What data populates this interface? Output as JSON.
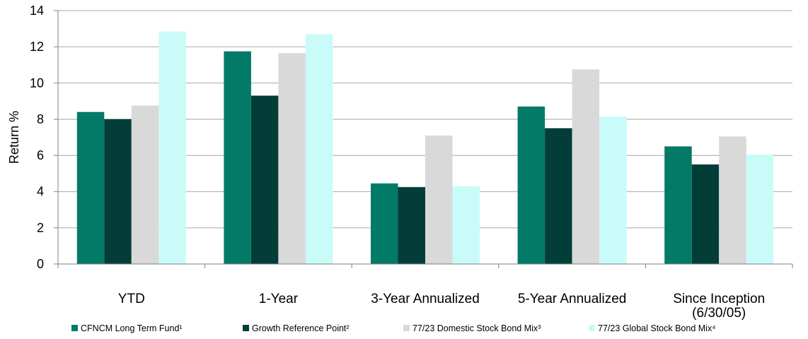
{
  "colors": {
    "series": [
      "#037A68",
      "#033D37",
      "#D9D9D9",
      "#C9FBF9"
    ],
    "grid": "#A6A6A6",
    "axis": "#808080"
  },
  "chart_data": {
    "type": "bar",
    "title": "",
    "xlabel": "",
    "ylabel": "Return %",
    "ylim": [
      0,
      14
    ],
    "yticks": [
      "0",
      "2",
      "4",
      "6",
      "8",
      "10",
      "12",
      "14"
    ],
    "grid": true,
    "legend_position": "bottom",
    "categories": [
      [
        "YTD"
      ],
      [
        "1-Year"
      ],
      [
        "3-Year Annualized"
      ],
      [
        "5-Year Annualized"
      ],
      [
        "Since Inception",
        "(6/30/05)"
      ]
    ],
    "series": [
      {
        "name": "CFNCM Long Term Fund¹",
        "values": [
          8.4,
          11.75,
          4.45,
          8.7,
          6.5
        ]
      },
      {
        "name": "Growth Reference Point²",
        "values": [
          8.0,
          9.3,
          4.25,
          7.5,
          5.5
        ]
      },
      {
        "name": "77/23 Domestic Stock Bond Mix³",
        "values": [
          8.75,
          11.65,
          7.1,
          10.75,
          7.05
        ]
      },
      {
        "name": "77/23 Global Stock Bond Mix⁴",
        "values": [
          12.85,
          12.7,
          4.3,
          8.15,
          6.05
        ]
      }
    ]
  }
}
